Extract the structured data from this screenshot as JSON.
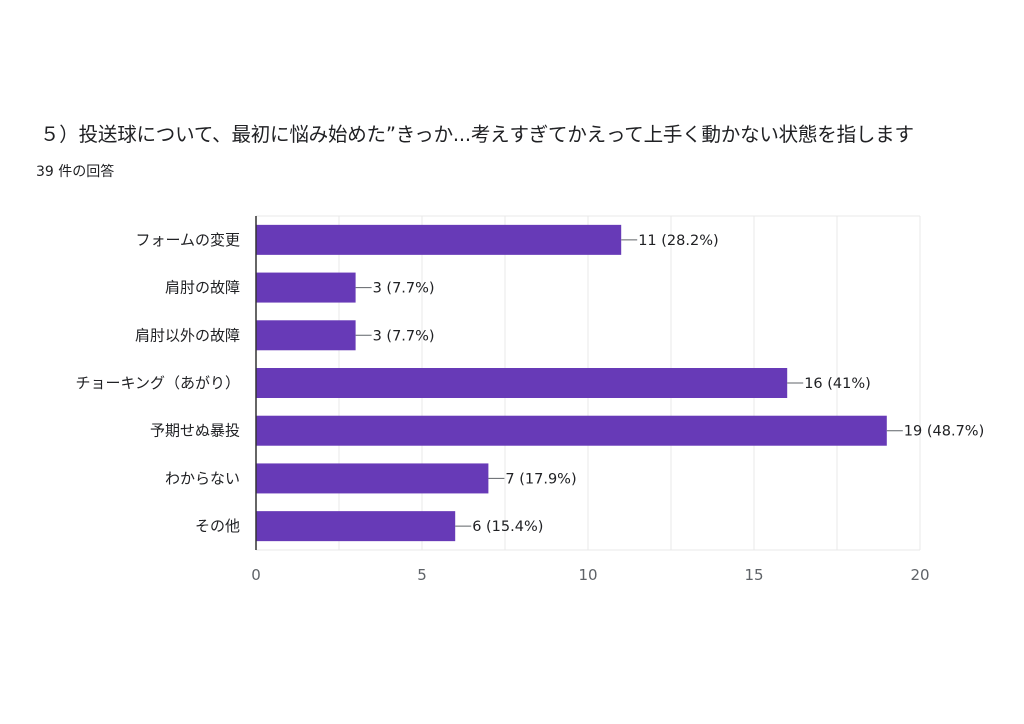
{
  "title": "５）投送球について、最初に悩み始めた”きっか...考えすぎてかえって上手く動かない状態を指します",
  "subtitle": "39 件の回答",
  "colors": {
    "bar": "#673ab7",
    "grid": "#e8e8e8",
    "axis": "#333333"
  },
  "chart_data": {
    "type": "bar",
    "orientation": "horizontal",
    "categories": [
      "フォームの変更",
      "肩肘の故障",
      "肩肘以外の故障",
      "チョーキング（あがり）",
      "予期せぬ暴投",
      "わからない",
      "その他"
    ],
    "values": [
      11,
      3,
      3,
      16,
      19,
      7,
      6
    ],
    "value_labels": [
      "11 (28.2%)",
      "3 (7.7%)",
      "3 (7.7%)",
      "16 (41%)",
      "19 (48.7%)",
      "7 (17.9%)",
      "6 (15.4%)"
    ],
    "xlim": [
      0,
      20
    ],
    "xticks": [
      0,
      5,
      10,
      15,
      20
    ],
    "grid": true,
    "xlabel": "",
    "ylabel": ""
  }
}
